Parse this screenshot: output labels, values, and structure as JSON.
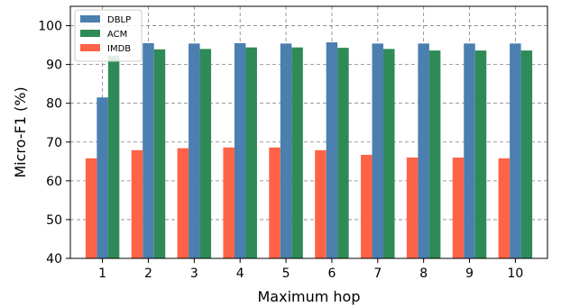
{
  "chart_data": {
    "type": "bar",
    "xlabel": "Maximum hop",
    "ylabel": "Micro-F1 (%)",
    "ylim": [
      40,
      105
    ],
    "yticks": [
      40,
      50,
      60,
      70,
      80,
      90,
      100
    ],
    "grid": true,
    "legend_position": "top-left",
    "categories": [
      "1",
      "2",
      "3",
      "4",
      "5",
      "6",
      "7",
      "8",
      "9",
      "10"
    ],
    "series": [
      {
        "name": "DBLP",
        "color": "#4a7fb0",
        "values": [
          81.5,
          95.5,
          95.4,
          95.5,
          95.4,
          95.7,
          95.4,
          95.4,
          95.4,
          95.4
        ]
      },
      {
        "name": "ACM",
        "color": "#2e8b57",
        "values": [
          92.3,
          93.9,
          94.0,
          94.4,
          94.4,
          94.3,
          94.0,
          93.6,
          93.6,
          93.6
        ]
      },
      {
        "name": "IMDB",
        "color": "#ff6347",
        "values": [
          65.8,
          67.9,
          68.4,
          68.6,
          68.6,
          67.9,
          66.7,
          66.0,
          66.0,
          65.8
        ]
      }
    ]
  }
}
